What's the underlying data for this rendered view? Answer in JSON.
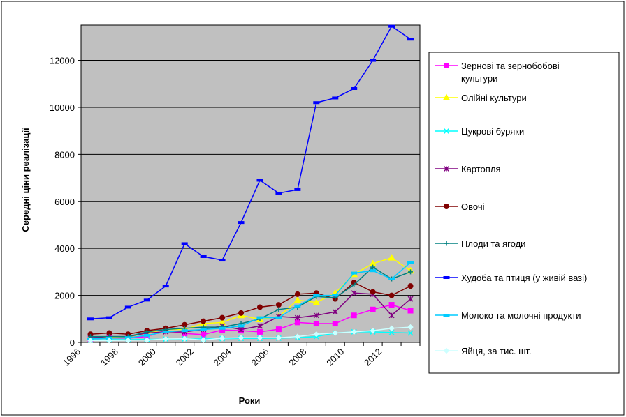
{
  "chart_data": {
    "type": "line",
    "xlabel": "Роки",
    "ylabel": "Середні ціни реалізації",
    "ylim": [
      0,
      13500
    ],
    "y_ticks": [
      0,
      2000,
      4000,
      6000,
      8000,
      10000,
      12000
    ],
    "x_ticks": [
      1996,
      1998,
      2000,
      2002,
      2004,
      2006,
      2008,
      2010,
      2012
    ],
    "x_range": [
      1996,
      2014
    ],
    "grid": "horizontal",
    "background": "#c0c0c0",
    "legend": "right",
    "x": [
      1996,
      1997,
      1998,
      1999,
      2000,
      2001,
      2002,
      2003,
      2004,
      2005,
      2006,
      2007,
      2008,
      2009,
      2010,
      2011,
      2012,
      2013
    ],
    "series": [
      {
        "name": "Зернові та зернобобові культури",
        "color": "#ff00ff",
        "marker": "square",
        "values": [
          150,
          180,
          180,
          250,
          500,
          380,
          330,
          530,
          500,
          450,
          560,
          850,
          800,
          800,
          1150,
          1400,
          1600,
          1350
        ]
      },
      {
        "name": "Олійні культури",
        "color": "#ffff00",
        "marker": "triangle",
        "values": [
          250,
          220,
          230,
          400,
          550,
          550,
          800,
          850,
          1150,
          980,
          1100,
          1800,
          1700,
          2100,
          2900,
          3350,
          3600,
          3050
        ]
      },
      {
        "name": "Цукрові буряки",
        "color": "#00ffff",
        "marker": "x",
        "values": [
          100,
          120,
          120,
          130,
          140,
          150,
          150,
          160,
          170,
          170,
          180,
          200,
          250,
          400,
          450,
          450,
          420,
          400
        ]
      },
      {
        "name": "Картопля",
        "color": "#800080",
        "marker": "star",
        "values": [
          200,
          250,
          250,
          400,
          450,
          450,
          550,
          700,
          550,
          700,
          1100,
          1050,
          1150,
          1300,
          2100,
          2050,
          1150,
          1850
        ]
      },
      {
        "name": "Овочі",
        "color": "#800000",
        "marker": "circle",
        "values": [
          350,
          400,
          350,
          500,
          600,
          750,
          900,
          1050,
          1250,
          1500,
          1600,
          2050,
          2100,
          1850,
          2550,
          2150,
          2000,
          2400
        ]
      },
      {
        "name": "Плоди та ягоди",
        "color": "#008080",
        "marker": "plus",
        "values": [
          250,
          250,
          250,
          450,
          550,
          600,
          650,
          650,
          800,
          1000,
          1400,
          1500,
          1950,
          1900,
          2450,
          3200,
          2700,
          3000
        ]
      },
      {
        "name": "Худоба та птиця (у живій вазі)",
        "color": "#0000ff",
        "marker": "dash",
        "values": [
          1000,
          1050,
          1500,
          1800,
          2400,
          4200,
          3650,
          3500,
          5100,
          6900,
          6350,
          6500,
          10200,
          10400,
          10800,
          12000,
          13450,
          12900
        ]
      },
      {
        "name": "Молоко та молочні продукти",
        "color": "#00ccff",
        "marker": "dash",
        "values": [
          150,
          180,
          200,
          300,
          450,
          500,
          550,
          600,
          700,
          1050,
          1050,
          1550,
          2000,
          2000,
          2950,
          3050,
          2700,
          3400
        ]
      },
      {
        "name": "Яйця, за тис. шт.",
        "color": "#ccffff",
        "marker": "diamond",
        "values": [
          80,
          80,
          90,
          100,
          150,
          160,
          100,
          180,
          200,
          200,
          200,
          250,
          350,
          400,
          450,
          500,
          600,
          650
        ]
      }
    ]
  }
}
